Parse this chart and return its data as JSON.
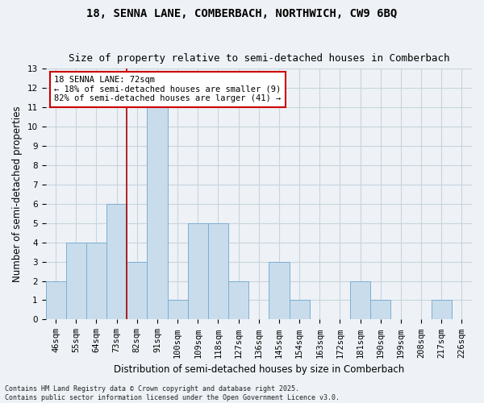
{
  "title": "18, SENNA LANE, COMBERBACH, NORTHWICH, CW9 6BQ",
  "subtitle": "Size of property relative to semi-detached houses in Comberbach",
  "xlabel": "Distribution of semi-detached houses by size in Comberbach",
  "ylabel": "Number of semi-detached properties",
  "categories": [
    "46sqm",
    "55sqm",
    "64sqm",
    "73sqm",
    "82sqm",
    "91sqm",
    "100sqm",
    "109sqm",
    "118sqm",
    "127sqm",
    "136sqm",
    "145sqm",
    "154sqm",
    "163sqm",
    "172sqm",
    "181sqm",
    "190sqm",
    "199sqm",
    "208sqm",
    "217sqm",
    "226sqm"
  ],
  "values": [
    2,
    4,
    4,
    6,
    3,
    11,
    1,
    5,
    5,
    2,
    0,
    3,
    1,
    0,
    0,
    2,
    1,
    0,
    0,
    1,
    0
  ],
  "bar_color": "#c9dcec",
  "bar_edge_color": "#7bafd4",
  "vline_x_index": 3.5,
  "vline_color": "#aa0000",
  "annotation_line1": "18 SENNA LANE: 72sqm",
  "annotation_line2": "← 18% of semi-detached houses are smaller (9)",
  "annotation_line3": "82% of semi-detached houses are larger (41) →",
  "annotation_box_color": "#ffffff",
  "annotation_box_edge": "#cc0000",
  "ylim": [
    0,
    13
  ],
  "yticks": [
    0,
    1,
    2,
    3,
    4,
    5,
    6,
    7,
    8,
    9,
    10,
    11,
    12,
    13
  ],
  "grid_color": "#c8d4de",
  "background_color": "#eef2f6",
  "footnote": "Contains HM Land Registry data © Crown copyright and database right 2025.\nContains public sector information licensed under the Open Government Licence v3.0.",
  "title_fontsize": 10,
  "subtitle_fontsize": 9,
  "xlabel_fontsize": 8.5,
  "ylabel_fontsize": 8.5,
  "tick_fontsize": 7.5,
  "annotation_fontsize": 7.5,
  "footnote_fontsize": 6
}
